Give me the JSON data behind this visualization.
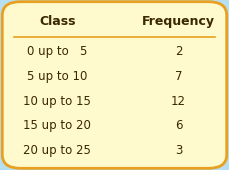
{
  "title_col1": "Class",
  "title_col2": "Frequency",
  "rows": [
    {
      "class": "0 up to   5",
      "frequency": "2"
    },
    {
      "class": "5 up to 10",
      "frequency": "7"
    },
    {
      "class": "10 up to 15",
      "frequency": "12"
    },
    {
      "class": "15 up to 20",
      "frequency": "6"
    },
    {
      "class": "20 up to 25",
      "frequency": "3"
    }
  ],
  "bg_color": "#FFFACD",
  "outer_bg": "#B8DFF0",
  "border_color": "#E8A020",
  "header_color": "#3A2800",
  "text_color": "#3A2800",
  "header_fontsize": 9,
  "row_fontsize": 8.5,
  "figsize": [
    2.29,
    1.7
  ],
  "dpi": 100
}
